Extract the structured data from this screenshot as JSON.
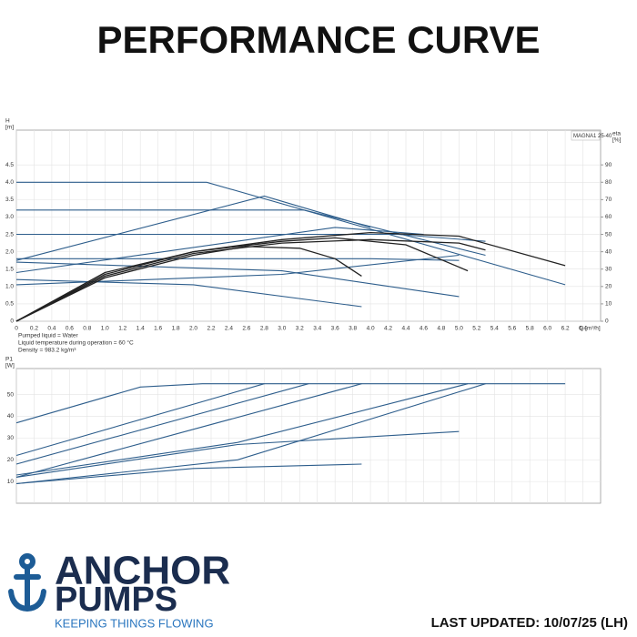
{
  "header": {
    "title": "PERFORMANCE CURVE"
  },
  "chart_data": [
    {
      "type": "line",
      "title": "MAGNA1 25-40",
      "ylabel": "H",
      "yunit": "[m]",
      "y2label": "eta",
      "y2unit": "[%]",
      "xlabel": "Q [m³/h]",
      "notes": [
        "Pumped liquid = Water",
        "Liquid temperature during operation = 60 °C",
        "Density = 983.2 kg/m³"
      ],
      "xlim": [
        0,
        6.6
      ],
      "xticks": [
        0,
        0.2,
        0.4,
        0.6,
        0.8,
        {
          "value": 1,
          "label": "1.0"
        },
        1.2,
        1.4,
        1.6,
        1.8,
        {
          "value": 2,
          "label": "2.0"
        },
        2.2,
        2.4,
        2.6,
        2.8,
        {
          "value": 3,
          "label": "3.0"
        },
        3.2,
        3.4,
        3.6,
        3.8,
        {
          "value": 4,
          "label": "4.0"
        },
        4.2,
        4.4,
        4.6,
        4.8,
        {
          "value": 5,
          "label": "5.0"
        },
        5.2,
        5.4,
        5.6,
        5.8,
        {
          "value": 6,
          "label": "6.0"
        },
        6.2,
        6.4
      ],
      "ylim": [
        0,
        5.5
      ],
      "yticks": [
        0,
        0.5,
        {
          "value": 1,
          "label": "1.0"
        },
        1.5,
        {
          "value": 2,
          "label": "2.0"
        },
        2.5,
        {
          "value": 3,
          "label": "3.0"
        },
        3.5,
        {
          "value": 4,
          "label": "4.0"
        },
        4.5
      ],
      "y2lim": [
        0,
        110
      ],
      "y2ticks": [
        0,
        10,
        20,
        30,
        40,
        50,
        60,
        70,
        80,
        90
      ],
      "grid": true,
      "series": [
        {
          "color": "#2e5e8c",
          "x": [
            0,
            2.15,
            6.2
          ],
          "values": [
            4.0,
            4.0,
            1.05
          ]
        },
        {
          "color": "#2e5e8c",
          "x": [
            0,
            3.25,
            5.3
          ],
          "values": [
            3.2,
            3.2,
            1.9
          ]
        },
        {
          "color": "#2e5e8c",
          "x": [
            0,
            4.3,
            5.3
          ],
          "values": [
            2.5,
            2.5,
            2.3
          ]
        },
        {
          "color": "#2e5e8c",
          "x": [
            0,
            2.8,
            4.0
          ],
          "values": [
            1.75,
            3.6,
            2.7
          ]
        },
        {
          "color": "#2e5e8c",
          "x": [
            0,
            3.6,
            4.6
          ],
          "values": [
            1.4,
            2.7,
            2.5
          ]
        },
        {
          "color": "#2e5e8c",
          "x": [
            0,
            4.0,
            5.0
          ],
          "values": [
            1.8,
            1.8,
            1.75
          ]
        },
        {
          "color": "#2e5e8c",
          "x": [
            0,
            3.0,
            5.0
          ],
          "values": [
            1.05,
            1.35,
            1.9
          ]
        },
        {
          "color": "#2e5e8c",
          "x": [
            0,
            2.0,
            3.9
          ],
          "values": [
            1.2,
            1.05,
            0.42
          ]
        },
        {
          "color": "#2e5e8c",
          "x": [
            0,
            3.0,
            5.0
          ],
          "values": [
            1.7,
            1.45,
            0.71
          ]
        },
        {
          "color": "#222222",
          "axis": "y2",
          "x": [
            0,
            1,
            2,
            3,
            4,
            5,
            6.2
          ],
          "values": [
            0,
            28,
            40,
            47,
            51,
            49,
            32
          ]
        },
        {
          "color": "#222222",
          "axis": "y2",
          "x": [
            0,
            1,
            2,
            3,
            3.6,
            4.4,
            5.1
          ],
          "values": [
            0,
            27,
            40,
            46,
            48,
            44,
            29
          ]
        },
        {
          "color": "#222222",
          "axis": "y2",
          "x": [
            0,
            1,
            2,
            2.6,
            3.2,
            3.6,
            3.9
          ],
          "values": [
            0,
            25,
            38,
            43,
            42,
            36,
            26
          ]
        },
        {
          "color": "#222222",
          "axis": "y2",
          "x": [
            0,
            1,
            2,
            3,
            4,
            5,
            5.3
          ],
          "values": [
            0,
            26,
            39,
            45,
            47,
            45,
            41
          ]
        }
      ]
    },
    {
      "type": "line",
      "ylabel": "P1",
      "yunit": "[W]",
      "xlim": [
        0,
        6.6
      ],
      "ylim": [
        0,
        62
      ],
      "yticks": [
        10,
        20,
        30,
        40,
        50
      ],
      "grid": true,
      "series": [
        {
          "color": "#2e5e8c",
          "x": [
            0,
            1.4,
            2.1,
            6.2
          ],
          "values": [
            37,
            53.5,
            55,
            55
          ]
        },
        {
          "color": "#2e5e8c",
          "x": [
            0,
            2.8
          ],
          "values": [
            22,
            55
          ]
        },
        {
          "color": "#2e5e8c",
          "x": [
            0,
            3.3
          ],
          "values": [
            18,
            55
          ]
        },
        {
          "color": "#2e5e8c",
          "x": [
            0,
            3.9
          ],
          "values": [
            12,
            55
          ]
        },
        {
          "color": "#2e5e8c",
          "x": [
            0,
            2.5,
            5.1
          ],
          "values": [
            13,
            28,
            55
          ]
        },
        {
          "color": "#2e5e8c",
          "x": [
            0,
            2.5,
            5.3
          ],
          "values": [
            9,
            20,
            55
          ]
        },
        {
          "color": "#2e5e8c",
          "x": [
            0,
            2.5,
            5.0
          ],
          "values": [
            12,
            27,
            33
          ]
        },
        {
          "color": "#2e5e8c",
          "x": [
            0,
            2.0,
            3.9
          ],
          "values": [
            9,
            16,
            18
          ]
        }
      ]
    }
  ],
  "logo": {
    "line1": "ANCHOR",
    "line2": "PUMPS",
    "tagline": "KEEPING THINGS FLOWING"
  },
  "footer": {
    "updated": "LAST UPDATED: 10/07/25 (LH)"
  }
}
